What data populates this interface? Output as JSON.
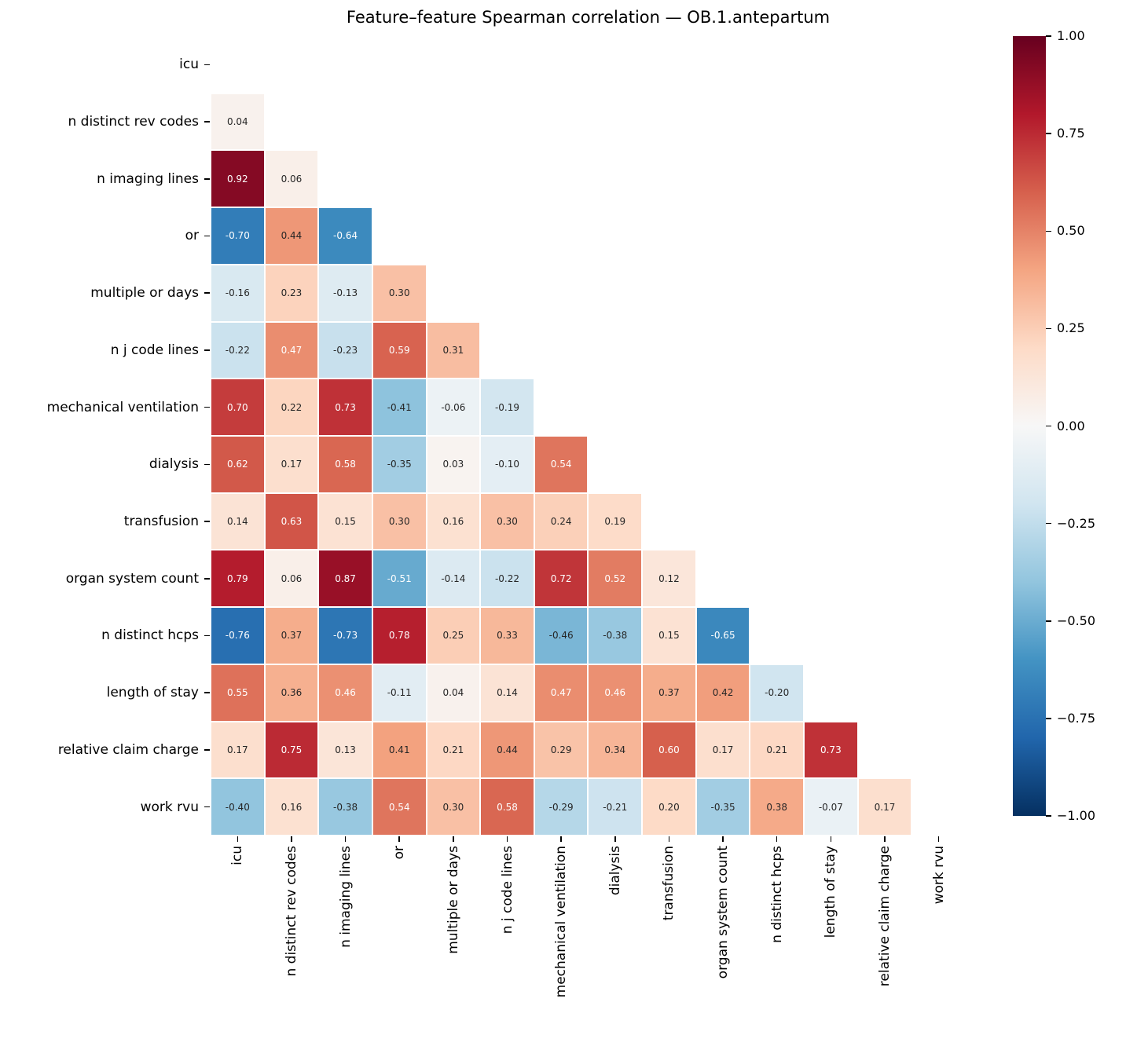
{
  "chart_data": {
    "type": "heatmap",
    "title": "Feature–feature Spearman correlation — OB.1.antepartum",
    "triangle": "lower, diagonal excluded",
    "labels": [
      "icu",
      "n distinct rev codes",
      "n imaging lines",
      "or",
      "multiple or days",
      "n j code lines",
      "mechanical ventilation",
      "dialysis",
      "transfusion",
      "organ system count",
      "n distinct hcps",
      "length of stay",
      "relative claim charge",
      "work rvu"
    ],
    "matrix_lower_triangle": [
      [],
      [
        0.04
      ],
      [
        0.92,
        0.06
      ],
      [
        -0.7,
        0.44,
        -0.64
      ],
      [
        -0.16,
        0.23,
        -0.13,
        0.3
      ],
      [
        -0.22,
        0.47,
        -0.23,
        0.59,
        0.31
      ],
      [
        0.7,
        0.22,
        0.73,
        -0.41,
        -0.06,
        -0.19
      ],
      [
        0.62,
        0.17,
        0.58,
        -0.35,
        0.03,
        -0.1,
        0.54
      ],
      [
        0.14,
        0.63,
        0.15,
        0.3,
        0.16,
        0.3,
        0.24,
        0.19
      ],
      [
        0.79,
        0.06,
        0.87,
        -0.51,
        -0.14,
        -0.22,
        0.72,
        0.52,
        0.12
      ],
      [
        -0.76,
        0.37,
        -0.73,
        0.78,
        0.25,
        0.33,
        -0.46,
        -0.38,
        0.15,
        -0.65
      ],
      [
        0.55,
        0.36,
        0.46,
        -0.11,
        0.04,
        0.14,
        0.47,
        0.46,
        0.37,
        0.42,
        -0.2
      ],
      [
        0.17,
        0.75,
        0.13,
        0.41,
        0.21,
        0.44,
        0.29,
        0.34,
        0.6,
        0.17,
        0.21,
        0.73
      ],
      [
        -0.4,
        0.16,
        -0.38,
        0.54,
        0.3,
        0.58,
        -0.29,
        -0.21,
        0.2,
        -0.35,
        0.38,
        -0.07,
        0.17
      ]
    ],
    "vmin": -1,
    "vmax": 1,
    "colormap": {
      "name": "RdBu_r",
      "anchors_low_to_high": [
        "#053061",
        "#2166ac",
        "#4393c3",
        "#92c5de",
        "#d1e5f0",
        "#f7f7f7",
        "#fddbc7",
        "#f4a582",
        "#d6604d",
        "#b2182b",
        "#67001f"
      ]
    },
    "annotation_text_colors": {
      "light": "#ffffff",
      "dark": "#262626"
    },
    "colorbar": {
      "tick_labels": [
        "1.00",
        "0.75",
        "0.50",
        "0.25",
        "0.00",
        "−0.25",
        "−0.50",
        "−0.75",
        "−1.00"
      ]
    }
  }
}
